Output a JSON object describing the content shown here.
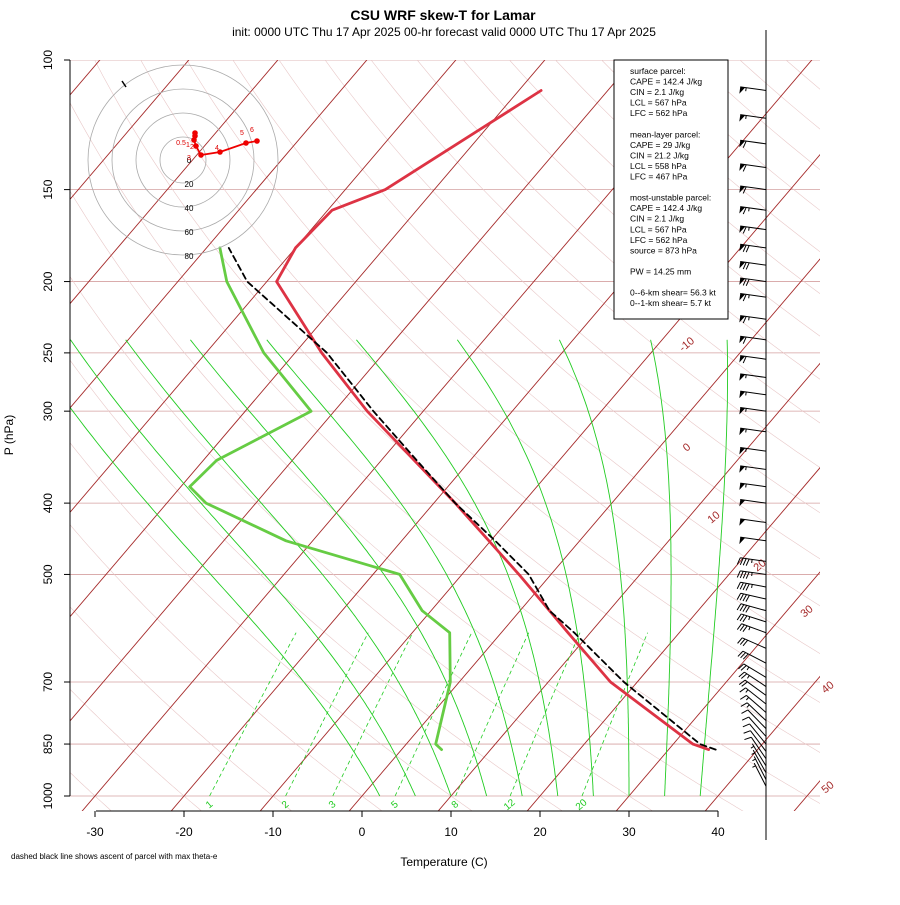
{
  "title": "CSU WRF skew-T for Lamar",
  "subtitle": "init: 0000 UTC Thu 17 Apr 2025     00-hr forecast valid 0000 UTC Thu 17 Apr 2025",
  "footnote": "dashed black line shows ascent of parcel with max theta-e",
  "indices_lines": [
    "surface parcel:",
    "CAPE = 142.4 J/kg",
    "CIN = 2.1 J/kg",
    "LCL = 567 hPa",
    "LFC = 562 hPa",
    "",
    "mean-layer parcel:",
    "CAPE = 29 J/kg",
    "CIN = 21.2 J/kg",
    "LCL = 558 hPa",
    "LFC = 467 hPa",
    "",
    "most-unstable parcel:",
    "CAPE = 142.4 J/kg",
    "CIN = 2.1 J/kg",
    "LCL = 567 hPa",
    "LFC = 562 hPa",
    "source = 873 hPa",
    "",
    "PW =  14.25 mm",
    "",
    "0--6-km shear= 56.3 kt",
    "0--1-km shear= 5.7 kt"
  ],
  "colors": {
    "temperature": "#dd3344",
    "dewpoint": "#66cc44",
    "parcel": "#000000",
    "isotherm": "#a52a2a",
    "isobar": "#d4a0a0",
    "mixing_ratio": "#22cc22",
    "hodograph": "#ee0000"
  },
  "hodograph": {
    "ring_labels": [
      "20",
      "40",
      "60",
      "80"
    ],
    "height_labels": [
      "0",
      "0.5",
      "1",
      "2",
      "3",
      "4",
      "5",
      "6"
    ]
  },
  "chart_data": {
    "type": "skew-t",
    "xlabel": "Temperature (C)",
    "ylabel": "P (hPa)",
    "xlim": [
      -33,
      51
    ],
    "ylim": [
      1000,
      100
    ],
    "x_ticks": [
      -30,
      -20,
      -10,
      0,
      10,
      20,
      30,
      40
    ],
    "y_ticks": [
      100,
      150,
      200,
      250,
      300,
      400,
      500,
      700,
      850,
      1000
    ],
    "y_log_scale": true,
    "isotherm_labels": [
      "-10",
      "0",
      "10",
      "20",
      "30",
      "40",
      "50"
    ],
    "mixing_ratio_labels": [
      "1",
      "2",
      "3",
      "5",
      "8",
      "12",
      "20"
    ],
    "temperature": {
      "p": [
        865,
        850,
        700,
        600,
        500,
        400,
        300,
        250,
        200,
        180,
        160,
        150,
        110
      ],
      "t": [
        34.5,
        32.2,
        17.0,
        7.5,
        -3.6,
        -17.6,
        -36.3,
        -47.0,
        -58.9,
        -60.0,
        -59.5,
        -55.5,
        -47.5
      ]
    },
    "dewpoint": {
      "p": [
        865,
        850,
        700,
        600,
        560,
        500,
        450,
        400,
        380,
        350,
        300,
        250,
        200,
        180
      ],
      "td": [
        4.5,
        3.3,
        -1.0,
        -5.8,
        -11.0,
        -17.0,
        -33.0,
        -45.6,
        -49.0,
        -48.5,
        -42.6,
        -53.5,
        -64.5,
        -68.5
      ]
    },
    "parcel": {
      "p": [
        865,
        850,
        700,
        600,
        560,
        500,
        450,
        400,
        350,
        300,
        250,
        200,
        180
      ],
      "t": [
        35.3,
        33.0,
        18.5,
        8.2,
        3.3,
        -2.5,
        -9.5,
        -17.6,
        -26.0,
        -35.6,
        -46.4,
        -62.2,
        -67.5
      ]
    },
    "wind_barbs_kt": {
      "p": [
        110,
        120,
        130,
        140,
        150,
        160,
        170,
        180,
        190,
        200,
        210,
        225,
        240,
        255,
        270,
        285,
        300,
        320,
        340,
        360,
        380,
        400,
        425,
        450,
        480,
        500,
        520,
        540,
        560,
        580,
        600,
        630,
        660,
        690,
        710,
        730,
        750,
        770,
        790,
        810,
        830,
        850,
        870,
        890,
        910,
        930,
        950,
        970
      ],
      "speed": [
        55,
        55,
        60,
        60,
        60,
        65,
        65,
        70,
        70,
        70,
        65,
        65,
        60,
        60,
        55,
        55,
        55,
        55,
        55,
        55,
        55,
        50,
        50,
        50,
        45,
        45,
        45,
        40,
        40,
        35,
        35,
        30,
        30,
        25,
        25,
        20,
        15,
        15,
        15,
        10,
        10,
        10,
        10,
        10,
        5,
        5,
        5,
        5
      ]
    }
  }
}
